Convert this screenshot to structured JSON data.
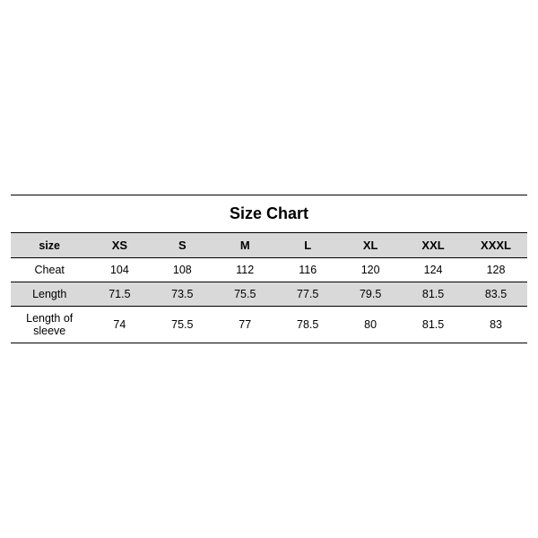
{
  "table": {
    "type": "table",
    "title": "Size Chart",
    "title_fontsize": 18,
    "label_fontsize": 12.5,
    "header_fontsize": 13,
    "cell_fontsize": 12.5,
    "colors": {
      "background_white": "#ffffff",
      "background_gray": "#d9d9d9",
      "border": "#000000",
      "text": "#000000"
    },
    "header_label": "size",
    "columns": [
      "XS",
      "S",
      "M",
      "L",
      "XL",
      "XXL",
      "XXXL"
    ],
    "rows": [
      {
        "label": "Cheat",
        "values": [
          "104",
          "108",
          "112",
          "116",
          "120",
          "124",
          "128"
        ],
        "bg": "white"
      },
      {
        "label": "Length",
        "values": [
          "71.5",
          "73.5",
          "75.5",
          "77.5",
          "79.5",
          "81.5",
          "83.5"
        ],
        "bg": "gray"
      },
      {
        "label": "Length of sleeve",
        "values": [
          "74",
          "75.5",
          "77",
          "78.5",
          "80",
          "81.5",
          "83"
        ],
        "bg": "white"
      }
    ],
    "column_widths": {
      "label": "15%",
      "value": "12.14%"
    }
  }
}
